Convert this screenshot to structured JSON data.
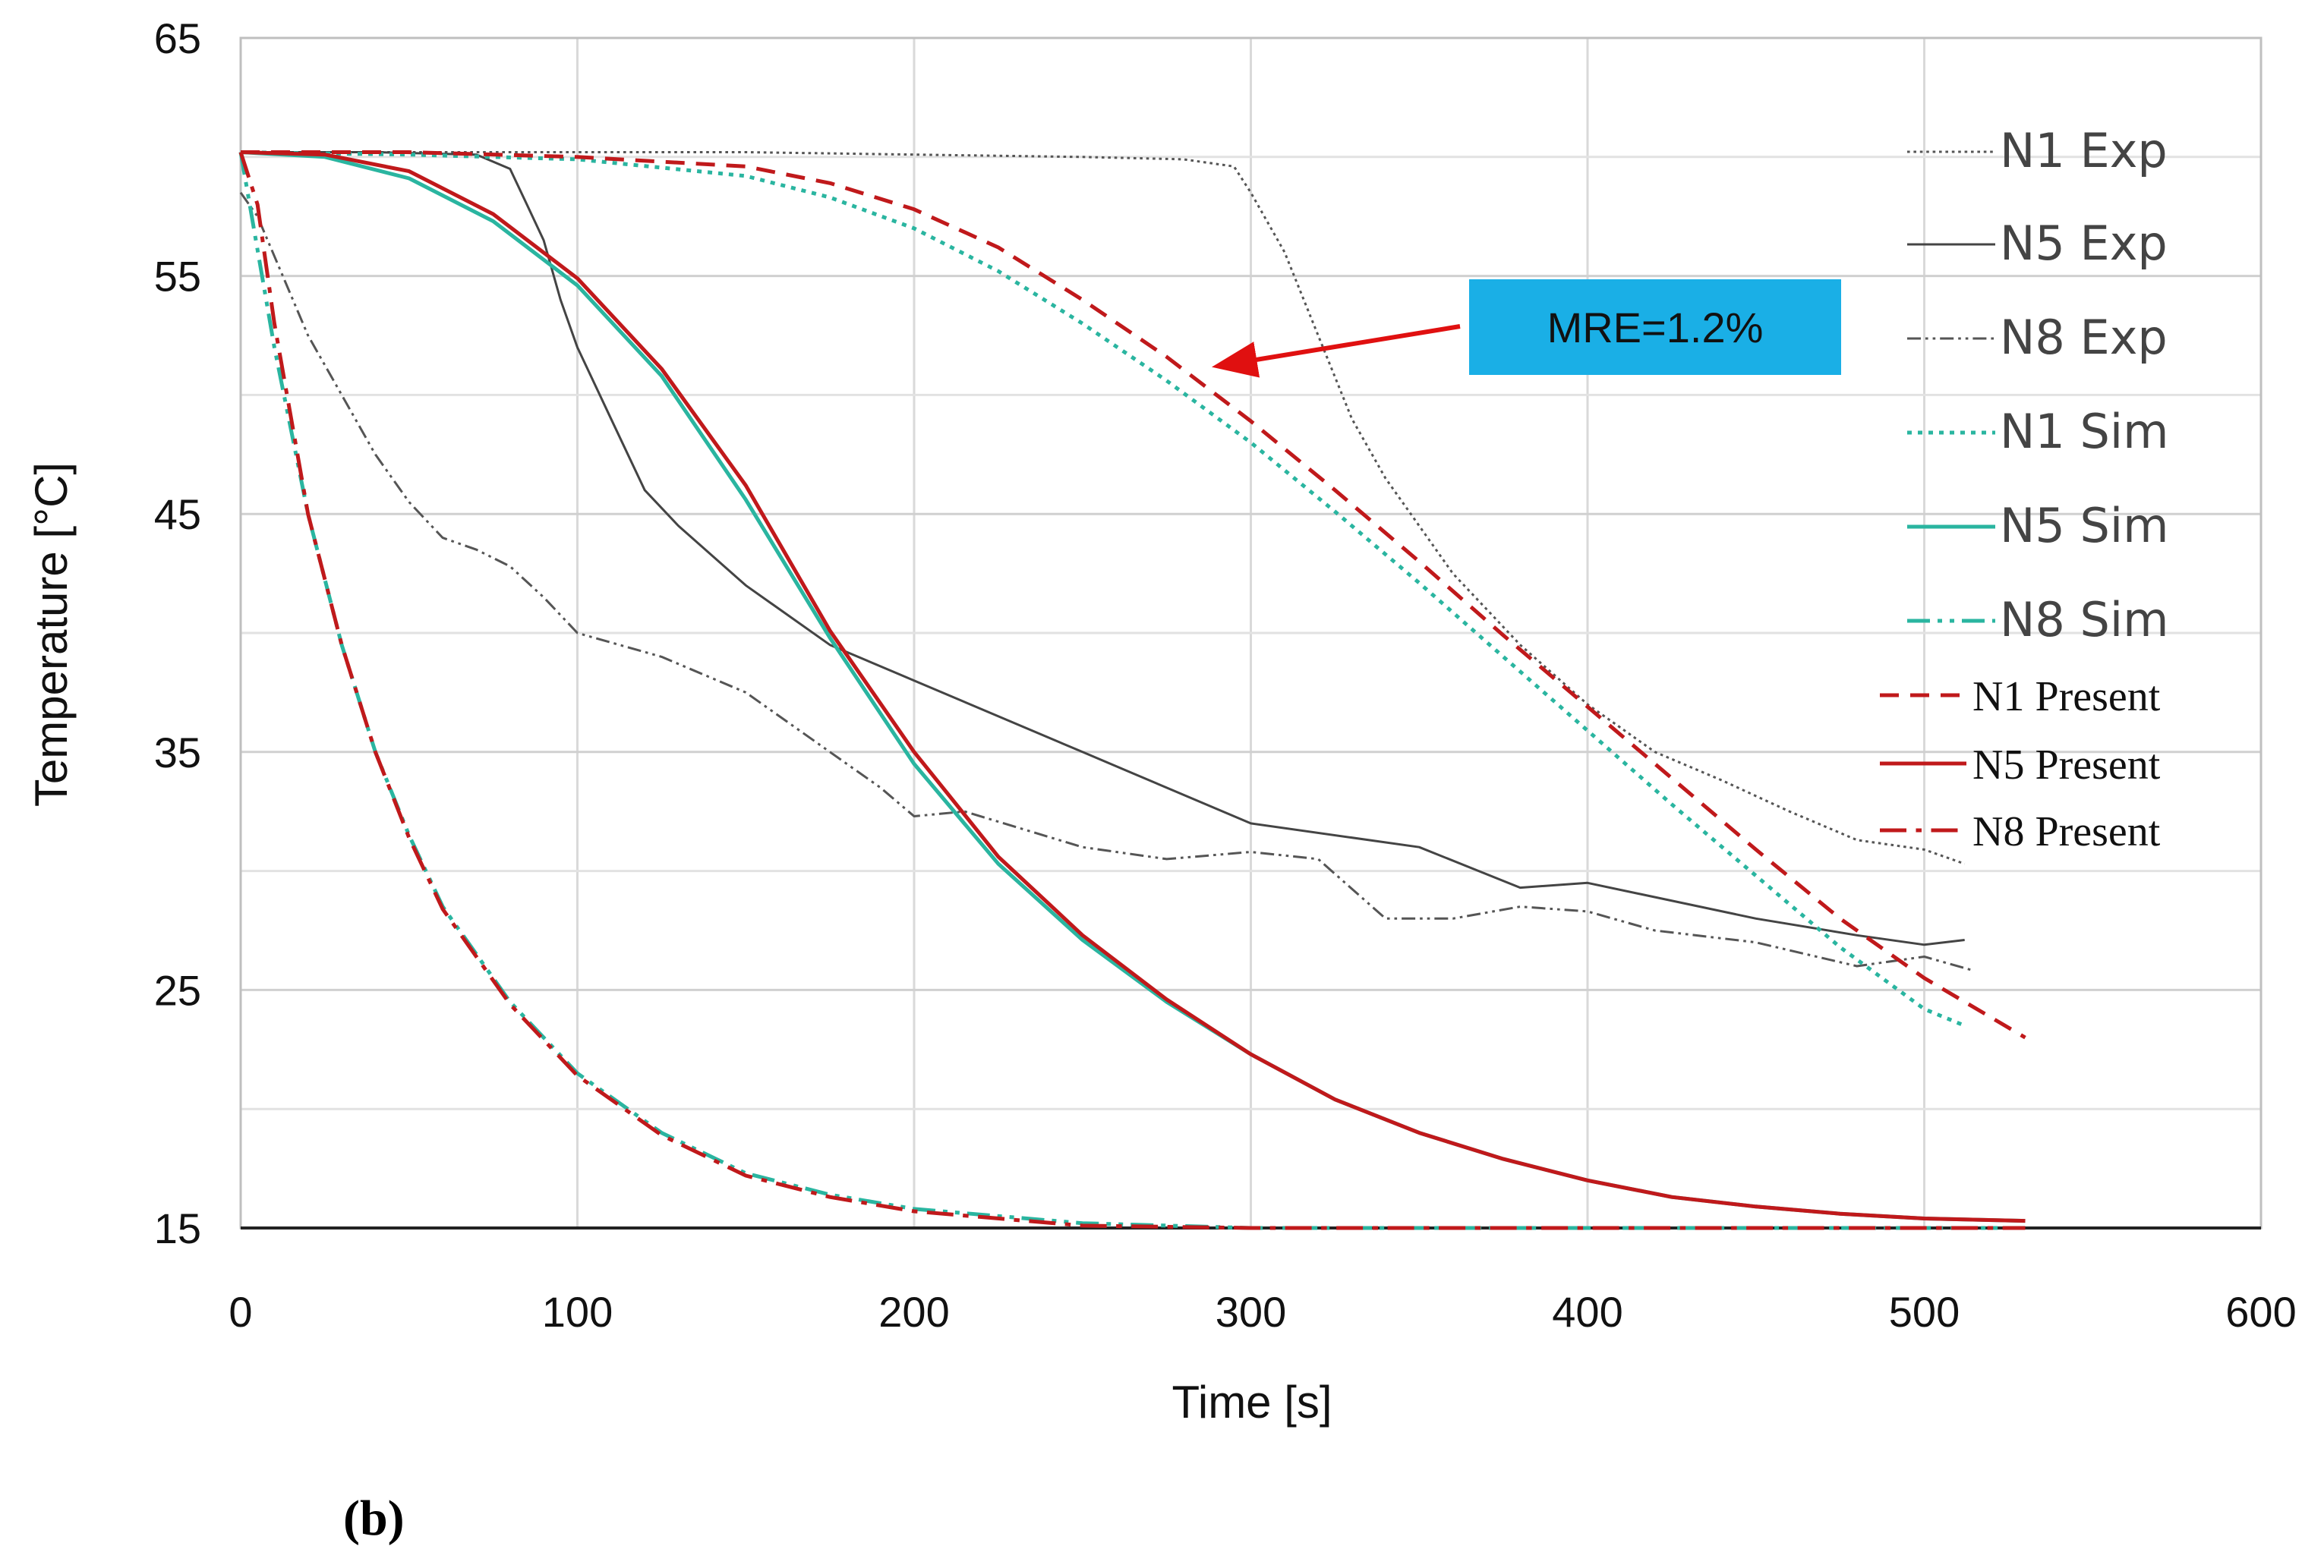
{
  "chart_data": {
    "type": "line",
    "title": "",
    "xlabel": "Time [s]",
    "ylabel": "Temperature [°C]",
    "xlim": [
      0,
      600
    ],
    "ylim": [
      15,
      65
    ],
    "xticks": [
      0,
      100,
      200,
      300,
      400,
      500,
      600
    ],
    "yticks": [
      15,
      25,
      35,
      45,
      55,
      65
    ],
    "grid": true,
    "legend_position": "right",
    "series": [
      {
        "name": "N1 Exp",
        "color": "#555555",
        "style": "dotted",
        "width": 3,
        "legend_font": "sans",
        "x": [
          0,
          50,
          100,
          150,
          200,
          250,
          280,
          295,
          300,
          310,
          320,
          330,
          340,
          350,
          360,
          380,
          400,
          420,
          440,
          460,
          480,
          500,
          512
        ],
        "y": [
          60.2,
          60.2,
          60.2,
          60.2,
          60.1,
          60.0,
          59.9,
          59.6,
          58.5,
          56.0,
          52.5,
          49.0,
          46.5,
          44.5,
          42.5,
          39.5,
          37.0,
          35.0,
          33.8,
          32.5,
          31.3,
          30.9,
          30.3
        ]
      },
      {
        "name": "N5 Exp",
        "color": "#444444",
        "style": "solid",
        "width": 3,
        "legend_font": "sans",
        "x": [
          0,
          40,
          70,
          80,
          85,
          90,
          95,
          100,
          110,
          120,
          130,
          150,
          175,
          200,
          250,
          300,
          350,
          380,
          400,
          450,
          480,
          500,
          512
        ],
        "y": [
          60.2,
          60.2,
          60.1,
          59.5,
          58.0,
          56.5,
          54.0,
          52.0,
          49.0,
          46.0,
          44.5,
          42.0,
          39.5,
          38.0,
          35.0,
          32.0,
          31.0,
          29.3,
          29.5,
          28.0,
          27.3,
          26.9,
          27.1
        ]
      },
      {
        "name": "N8 Exp",
        "color": "#555555",
        "style": "dashdotdot",
        "width": 3,
        "legend_font": "sans",
        "x": [
          0,
          5,
          20,
          30,
          40,
          50,
          60,
          70,
          80,
          90,
          100,
          125,
          150,
          175,
          190,
          200,
          215,
          250,
          275,
          300,
          320,
          340,
          360,
          380,
          400,
          420,
          450,
          480,
          500,
          515
        ],
        "y": [
          58.5,
          57.5,
          52.5,
          50.0,
          47.5,
          45.5,
          44.0,
          43.5,
          42.8,
          41.5,
          40.0,
          39.0,
          37.5,
          35.0,
          33.5,
          32.3,
          32.5,
          31.0,
          30.5,
          30.8,
          30.5,
          28.0,
          28.0,
          28.5,
          28.3,
          27.5,
          27.0,
          26.0,
          26.4,
          25.8
        ]
      },
      {
        "name": "N1 Sim",
        "color": "#2ab5a0",
        "style": "dotted",
        "width": 5,
        "legend_font": "sans",
        "x": [
          0,
          50,
          100,
          150,
          175,
          200,
          225,
          250,
          275,
          300,
          325,
          350,
          375,
          400,
          425,
          450,
          475,
          500,
          512
        ],
        "y": [
          60.2,
          60.1,
          59.9,
          59.2,
          58.3,
          57.0,
          55.2,
          53.0,
          50.6,
          48.0,
          45.1,
          42.1,
          39.0,
          35.9,
          32.8,
          29.8,
          26.8,
          24.2,
          23.5
        ]
      },
      {
        "name": "N5 Sim",
        "color": "#2ab5a0",
        "style": "solid",
        "width": 5,
        "legend_font": "sans",
        "x": [
          0,
          25,
          50,
          75,
          100,
          125,
          150,
          175,
          200,
          225,
          250,
          275,
          300,
          325,
          350,
          375,
          400,
          425,
          450,
          475,
          500,
          530
        ],
        "y": [
          60.2,
          60.0,
          59.1,
          57.3,
          54.6,
          50.8,
          45.6,
          39.8,
          34.5,
          30.3,
          27.1,
          24.5,
          22.3,
          20.4,
          19.0,
          17.9,
          17.0,
          16.3,
          15.9,
          15.6,
          15.4,
          15.3
        ]
      },
      {
        "name": "N8 Sim",
        "color": "#2ab5a0",
        "style": "dashdotdot",
        "width": 5,
        "legend_font": "sans",
        "x": [
          0,
          10,
          20,
          30,
          40,
          50,
          60,
          80,
          100,
          125,
          150,
          175,
          200,
          250,
          300,
          400,
          500,
          530
        ],
        "y": [
          60.2,
          52.0,
          45.0,
          39.5,
          35.0,
          31.5,
          28.5,
          24.5,
          21.5,
          19.0,
          17.3,
          16.4,
          15.8,
          15.2,
          15.0,
          15.0,
          15.0,
          15.0
        ]
      },
      {
        "name": "N1 Present",
        "color": "#c0191b",
        "style": "dashed",
        "width": 5,
        "legend_font": "serif",
        "x": [
          0,
          50,
          100,
          150,
          175,
          200,
          225,
          250,
          275,
          300,
          325,
          350,
          375,
          400,
          425,
          450,
          475,
          500,
          530
        ],
        "y": [
          60.2,
          60.2,
          60.0,
          59.6,
          58.9,
          57.8,
          56.2,
          54.0,
          51.6,
          48.9,
          46.0,
          43.0,
          39.9,
          36.9,
          33.9,
          30.9,
          28.0,
          25.5,
          23.0
        ]
      },
      {
        "name": "N5 Present",
        "color": "#c0191b",
        "style": "solid",
        "width": 5,
        "legend_font": "serif",
        "x": [
          0,
          25,
          50,
          75,
          100,
          125,
          150,
          175,
          200,
          225,
          250,
          275,
          300,
          325,
          350,
          375,
          400,
          425,
          450,
          475,
          500,
          530
        ],
        "y": [
          60.2,
          60.1,
          59.4,
          57.6,
          54.9,
          51.1,
          46.2,
          40.1,
          35.0,
          30.6,
          27.3,
          24.6,
          22.3,
          20.4,
          19.0,
          17.9,
          17.0,
          16.3,
          15.9,
          15.6,
          15.4,
          15.3
        ]
      },
      {
        "name": "N8 Present",
        "color": "#c0191b",
        "style": "dashdot",
        "width": 5,
        "legend_font": "serif",
        "x": [
          0,
          5,
          10,
          20,
          30,
          40,
          50,
          60,
          80,
          100,
          125,
          150,
          175,
          200,
          250,
          300,
          400,
          500,
          530
        ],
        "y": [
          60.2,
          58.0,
          53.0,
          45.0,
          39.5,
          35.0,
          31.4,
          28.4,
          24.4,
          21.4,
          18.9,
          17.2,
          16.3,
          15.7,
          15.1,
          15.0,
          15.0,
          15.0,
          15.0
        ]
      }
    ],
    "annotations": [
      {
        "text": "MRE=1.2%",
        "box_color": "#1aafe6",
        "arrow_color": "#e01010",
        "target_series": "N1 Present",
        "target_x": 287,
        "target_y": 51.3
      }
    ]
  },
  "caption": "(b)"
}
